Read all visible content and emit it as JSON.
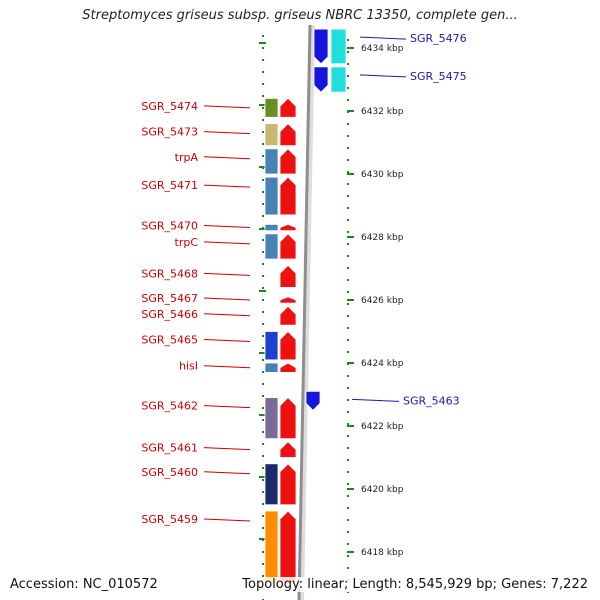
{
  "title": "Streptomyces griseus subsp. griseus NBRC 13350, complete gen...",
  "footer": {
    "accession": "Accession: NC_010572",
    "summary": "Topology: linear; Length: 8,545,929 bp; Genes: 7,222"
  },
  "colors": {
    "left_label": "#cc0000",
    "right_label": "#1a1aaa",
    "tick": "#1a8a1a",
    "backbone": "#9a9a9a",
    "forward_gene": "#ee1111",
    "reverse_gene": "#1515dd",
    "reverse_cds": "#22dddd"
  },
  "kbp_markers": [
    {
      "label": "6434 kbp",
      "kbp": 6434
    },
    {
      "label": "6432 kbp",
      "kbp": 6432
    },
    {
      "label": "6430 kbp",
      "kbp": 6430
    },
    {
      "label": "6428 kbp",
      "kbp": 6428
    },
    {
      "label": "6426 kbp",
      "kbp": 6426
    },
    {
      "label": "6424 kbp",
      "kbp": 6424
    },
    {
      "label": "6422 kbp",
      "kbp": 6422
    },
    {
      "label": "6420 kbp",
      "kbp": 6420
    },
    {
      "label": "6418 kbp",
      "kbp": 6418
    }
  ],
  "left_genes": [
    {
      "name": "SGR_5474",
      "start": 6431.8,
      "end": 6432.4
    },
    {
      "name": "SGR_5473",
      "start": 6430.9,
      "end": 6431.6
    },
    {
      "name": "trpA",
      "start": 6430.0,
      "end": 6430.8
    },
    {
      "name": "SGR_5471",
      "start": 6428.7,
      "end": 6429.9
    },
    {
      "name": "SGR_5470",
      "start": 6428.2,
      "end": 6428.4
    },
    {
      "name": "trpC",
      "start": 6427.3,
      "end": 6428.1
    },
    {
      "name": "SGR_5468",
      "start": 6426.4,
      "end": 6427.1
    },
    {
      "name": "SGR_5467",
      "start": 6425.9,
      "end": 6426.1
    },
    {
      "name": "SGR_5466",
      "start": 6425.2,
      "end": 6425.8
    },
    {
      "name": "SGR_5465",
      "start": 6424.1,
      "end": 6425.0
    },
    {
      "name": "hisI",
      "start": 6423.7,
      "end": 6424.0
    },
    {
      "name": "SGR_5462",
      "start": 6421.6,
      "end": 6422.9
    },
    {
      "name": "SGR_5461",
      "start": 6421.0,
      "end": 6421.5
    },
    {
      "name": "SGR_5460",
      "start": 6419.5,
      "end": 6420.8
    },
    {
      "name": "SGR_5459",
      "start": 6417.0,
      "end": 6419.3
    }
  ],
  "right_genes": [
    {
      "name": "SGR_5476",
      "start": 6433.5,
      "end": 6434.6
    },
    {
      "name": "SGR_5475",
      "start": 6432.6,
      "end": 6433.4
    },
    {
      "name": "SGR_5463",
      "start": 6422.5,
      "end": 6423.1
    }
  ]
}
